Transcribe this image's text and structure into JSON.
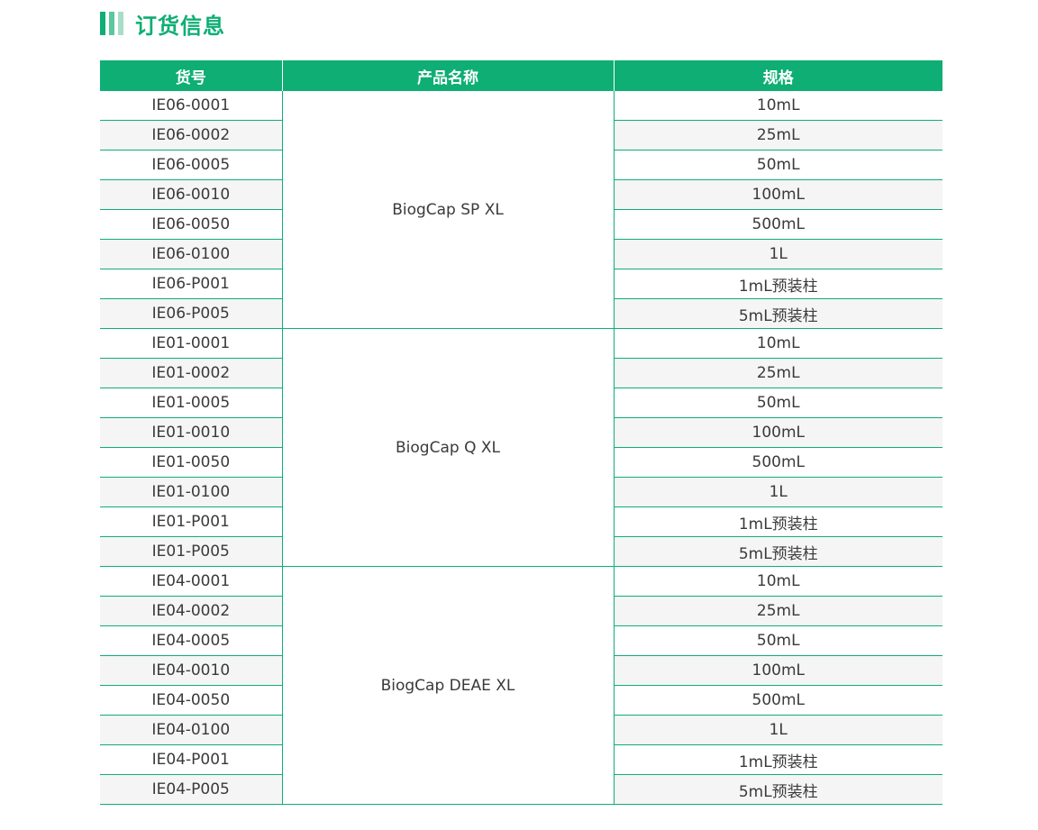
{
  "section": {
    "title": "订货信息"
  },
  "colors": {
    "accent": "#0fae74",
    "row_alt": "#f5f5f5"
  },
  "table": {
    "headers": [
      "货号",
      "产品名称",
      "规格"
    ],
    "groups": [
      {
        "name": "BiogCap SP XL",
        "rows": [
          {
            "code": "IE06-0001",
            "spec": "10mL"
          },
          {
            "code": "IE06-0002",
            "spec": "25mL"
          },
          {
            "code": "IE06-0005",
            "spec": "50mL"
          },
          {
            "code": "IE06-0010",
            "spec": "100mL"
          },
          {
            "code": "IE06-0050",
            "spec": "500mL"
          },
          {
            "code": "IE06-0100",
            "spec": "1L"
          },
          {
            "code": "IE06-P001",
            "spec": "1mL预装柱"
          },
          {
            "code": "IE06-P005",
            "spec": "5mL预装柱"
          }
        ]
      },
      {
        "name": "BiogCap Q XL",
        "rows": [
          {
            "code": "IE01-0001",
            "spec": "10mL"
          },
          {
            "code": "IE01-0002",
            "spec": "25mL"
          },
          {
            "code": "IE01-0005",
            "spec": "50mL"
          },
          {
            "code": "IE01-0010",
            "spec": "100mL"
          },
          {
            "code": "IE01-0050",
            "spec": "500mL"
          },
          {
            "code": "IE01-0100",
            "spec": "1L"
          },
          {
            "code": "IE01-P001",
            "spec": "1mL预装柱"
          },
          {
            "code": "IE01-P005",
            "spec": "5mL预装柱"
          }
        ]
      },
      {
        "name": "BiogCap DEAE XL",
        "rows": [
          {
            "code": "IE04-0001",
            "spec": "10mL"
          },
          {
            "code": "IE04-0002",
            "spec": "25mL"
          },
          {
            "code": "IE04-0005",
            "spec": "50mL"
          },
          {
            "code": "IE04-0010",
            "spec": "100mL"
          },
          {
            "code": "IE04-0050",
            "spec": "500mL"
          },
          {
            "code": "IE04-0100",
            "spec": "1L"
          },
          {
            "code": "IE04-P001",
            "spec": "1mL预装柱"
          },
          {
            "code": "IE04-P005",
            "spec": "5mL预装柱"
          }
        ]
      }
    ]
  }
}
